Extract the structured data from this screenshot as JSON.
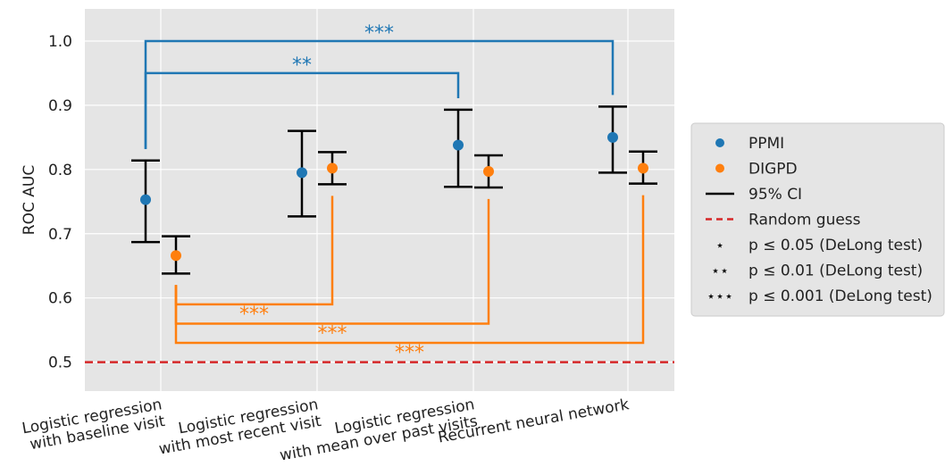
{
  "chart_data": {
    "type": "scatter",
    "categories": [
      [
        "Logistic regression",
        "with baseline visit"
      ],
      [
        "Logistic regression",
        "with most recent visit"
      ],
      [
        "Logistic regression",
        "with mean over past visits"
      ],
      [
        "Recurrent neural network"
      ]
    ],
    "ylabel": "ROC AUC",
    "ylim": [
      0.455,
      1.05
    ],
    "yticks": [
      "0.5",
      "0.6",
      "0.7",
      "0.8",
      "0.9",
      "1.0"
    ],
    "grid": true,
    "legend_position": "right",
    "series": [
      {
        "name": "PPMI",
        "color": "#1f77b4",
        "values": [
          0.753,
          0.795,
          0.838,
          0.85
        ],
        "ci_low": [
          0.687,
          0.727,
          0.773,
          0.795
        ],
        "ci_high": [
          0.814,
          0.86,
          0.893,
          0.898
        ]
      },
      {
        "name": "DIGPD",
        "color": "#ff7f0e",
        "values": [
          0.666,
          0.802,
          0.797,
          0.802
        ],
        "ci_low": [
          0.638,
          0.777,
          0.772,
          0.778
        ],
        "ci_high": [
          0.696,
          0.827,
          0.822,
          0.828
        ]
      }
    ],
    "reference_line": {
      "y": 0.5,
      "label": "Random guess",
      "color": "#d62728"
    },
    "significance": [
      {
        "series": "PPMI",
        "from": 0,
        "to": 3,
        "label": "***",
        "level": 1.0
      },
      {
        "series": "PPMI",
        "from": 0,
        "to": 2,
        "label": "**",
        "level": 0.95
      },
      {
        "series": "DIGPD",
        "from": 0,
        "to": 1,
        "label": "***",
        "level": 0.59
      },
      {
        "series": "DIGPD",
        "from": 0,
        "to": 2,
        "label": "***",
        "level": 0.56
      },
      {
        "series": "DIGPD",
        "from": 0,
        "to": 3,
        "label": "***",
        "level": 0.53
      }
    ],
    "legend": [
      {
        "kind": "dot",
        "color": "#1f77b4",
        "label": "PPMI"
      },
      {
        "kind": "dot",
        "color": "#ff7f0e",
        "label": "DIGPD"
      },
      {
        "kind": "line",
        "color": "#000000",
        "label": "95% CI"
      },
      {
        "kind": "dash",
        "color": "#d62728",
        "label": "Random guess"
      },
      {
        "kind": "stars",
        "stars": "⋆",
        "label": "p ≤ 0.05 (DeLong test)"
      },
      {
        "kind": "stars",
        "stars": "⋆⋆",
        "label": "p ≤ 0.01 (DeLong test)"
      },
      {
        "kind": "stars",
        "stars": "⋆⋆⋆",
        "label": "p ≤ 0.001 (DeLong test)"
      }
    ]
  }
}
